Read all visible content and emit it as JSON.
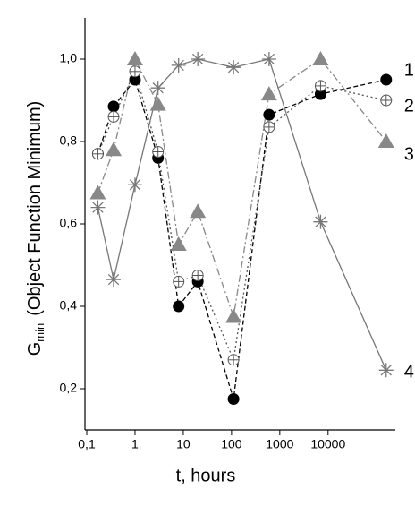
{
  "chart_data": {
    "type": "line",
    "xlabel": "t, hours",
    "ylabel": "G",
    "ylabel_subscript": "min",
    "ylabel_rest": "(Object Function Minimum)",
    "x": [
      0.17,
      0.36,
      1,
      3,
      8,
      20,
      110,
      600,
      7000,
      160000
    ],
    "xscale": "log",
    "xlim": [
      0.1,
      200000
    ],
    "xticks": [
      {
        "value": 0.1,
        "label": "0,1"
      },
      1,
      10,
      100,
      1000,
      10000
    ],
    "ylim": [
      0.1,
      1.1
    ],
    "yticks": [
      {
        "value": 0.2,
        "label": "0,2"
      },
      {
        "value": 0.4,
        "label": "0,4"
      },
      {
        "value": 0.6,
        "label": "0,6"
      },
      {
        "value": 0.8,
        "label": "0,8"
      },
      {
        "value": 1.0,
        "label": "1,0"
      }
    ],
    "series": [
      {
        "name": "1",
        "color": "#000000",
        "marker": "filled-circle",
        "dash": "5,3",
        "values": [
          0.77,
          0.885,
          0.95,
          0.76,
          0.4,
          0.46,
          0.175,
          0.865,
          0.915,
          0.95
        ]
      },
      {
        "name": "2",
        "color": "#555555",
        "marker": "crossed-circle",
        "dash": "2,3",
        "values": [
          0.77,
          0.86,
          0.97,
          0.775,
          0.46,
          0.475,
          0.27,
          0.835,
          0.935,
          0.9
        ]
      },
      {
        "name": "3",
        "color": "#888888",
        "marker": "triangle",
        "dash": "8,3,2,3",
        "values": [
          0.675,
          0.78,
          1.0,
          0.89,
          0.55,
          0.63,
          0.375,
          0.915,
          1.0,
          0.8
        ]
      },
      {
        "name": "4",
        "color": "#777777",
        "marker": "asterisk",
        "dash": "none",
        "values": [
          0.64,
          0.465,
          0.695,
          0.93,
          0.985,
          1.0,
          0.98,
          1.0,
          0.605,
          0.245
        ]
      }
    ]
  }
}
